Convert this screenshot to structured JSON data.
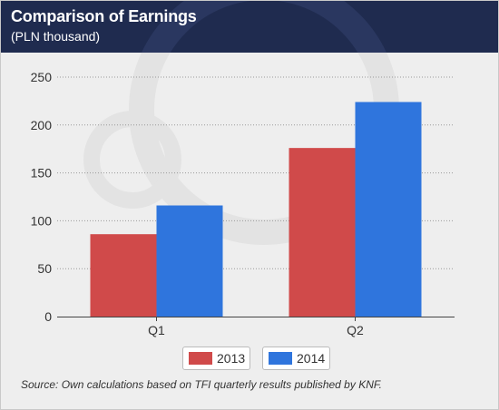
{
  "header": {
    "title": "Comparison of Earnings",
    "subtitle": "(PLN thousand)"
  },
  "source": "Source: Own calculations based on TFI quarterly results published by KNF.",
  "colors": {
    "header_bg": "#1f2b4f",
    "series_2013": "#d04a4a",
    "series_2014": "#2f75dd"
  },
  "chart_data": {
    "type": "bar",
    "categories": [
      "Q1",
      "Q2"
    ],
    "series": [
      {
        "name": "2013",
        "values": [
          86,
          176
        ]
      },
      {
        "name": "2014",
        "values": [
          116,
          224
        ]
      }
    ],
    "ylim": [
      0,
      250
    ],
    "yticks": [
      0,
      50,
      100,
      150,
      200,
      250
    ],
    "grid": true,
    "legend": "bottom-center"
  }
}
